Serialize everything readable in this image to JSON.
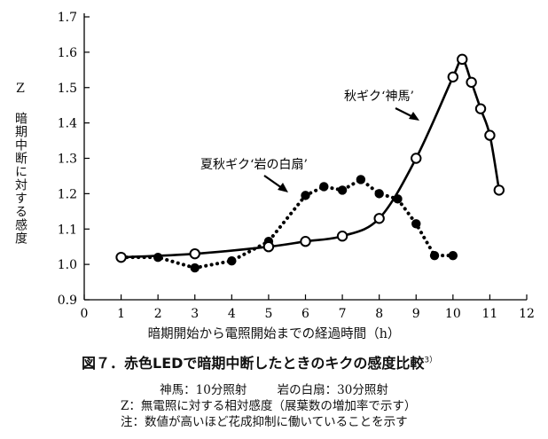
{
  "chart_data": {
    "type": "line",
    "title": "",
    "xlabel": "暗期開始から電照開始までの経過時間（h）",
    "ylabel": "Z 暗期中断に対する感度",
    "xlim": [
      0,
      12
    ],
    "ylim": [
      0.9,
      1.7
    ],
    "xticks": [
      "0",
      "1",
      "2",
      "3",
      "4",
      "5",
      "6",
      "7",
      "8",
      "9",
      "10",
      "11",
      "12"
    ],
    "yticks": [
      "0.9",
      "1.0",
      "1.1",
      "1.2",
      "1.3",
      "1.4",
      "1.5",
      "1.6",
      "1.7"
    ],
    "grid": false,
    "legend": "none",
    "series": [
      {
        "name": "秋ギク‘神馬’",
        "line_style": "solid",
        "marker": "open-circle",
        "color": "#000000",
        "x": [
          1,
          3,
          5,
          6,
          7,
          8,
          9,
          10,
          10.25,
          10.5,
          10.75,
          11,
          11.25
        ],
        "y": [
          1.02,
          1.03,
          1.05,
          1.065,
          1.08,
          1.13,
          1.3,
          1.53,
          1.58,
          1.515,
          1.44,
          1.365,
          1.21
        ]
      },
      {
        "name": "夏秋ギク‘岩の白扇’",
        "line_style": "dotted",
        "marker": "filled-circle",
        "color": "#000000",
        "x": [
          1,
          2,
          3,
          4,
          5,
          6,
          6.5,
          7,
          7.5,
          8,
          8.5,
          9,
          9.5,
          10
        ],
        "y": [
          1.02,
          1.02,
          0.99,
          1.01,
          1.065,
          1.195,
          1.22,
          1.21,
          1.24,
          1.2,
          1.185,
          1.115,
          1.025,
          1.025
        ]
      }
    ]
  },
  "caption": {
    "figure_title": "図７．赤色LEDで暗期中断したときのキクの感度比較",
    "figure_title_ref": "3）",
    "note_shinma": "神馬：10分照射",
    "note_iwa": "岩の白扇：30分照射",
    "note_z": "Z：無電照に対する相対感度（展葉数の増加率で示す）",
    "note_general": "注：数値が高いほど花成抑制に働いていることを示す"
  }
}
